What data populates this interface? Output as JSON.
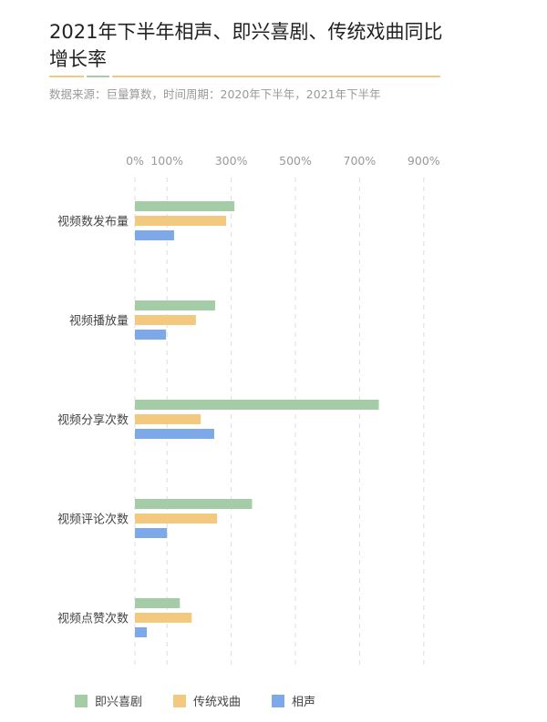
{
  "chart_data": {
    "type": "bar",
    "orientation": "horizontal",
    "title": "2021年下半年相声、即兴喜剧、传统戏曲同比增长率",
    "subtitle": "数据来源：巨量算数，时间周期：2020年下半年，2021年下半年",
    "categories": [
      "视频数发布量",
      "视频播放量",
      "视频分享次数",
      "视频评论次数",
      "视频点赞次数"
    ],
    "series": [
      {
        "name": "即兴喜剧",
        "color": "#a3cca7",
        "values": [
          310,
          250,
          760,
          365,
          140
        ]
      },
      {
        "name": "传统戏曲",
        "color": "#f2c97e",
        "values": [
          284,
          190,
          205,
          256,
          177
        ]
      },
      {
        "name": "相声",
        "color": "#7ea9e8",
        "values": [
          122,
          97,
          247,
          100,
          37
        ]
      }
    ],
    "xticks": [
      0,
      100,
      300,
      500,
      700,
      900
    ],
    "xtick_labels": [
      "0%",
      "100%",
      "300%",
      "500%",
      "700%",
      "900%"
    ],
    "xlim": [
      0,
      900
    ],
    "grid": true,
    "legend": "bottom-left"
  }
}
